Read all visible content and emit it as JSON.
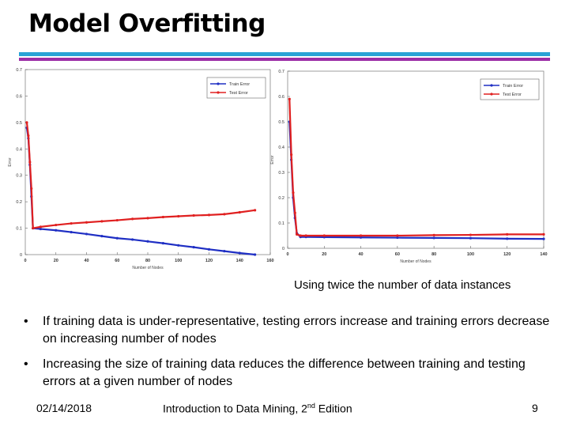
{
  "slide": {
    "title": "Model Overfitting",
    "caption": "Using twice the number of data instances",
    "bullets": [
      "If training data is under-representative, testing errors increase and training errors decrease on increasing number of nodes",
      "Increasing the size of training data reduces the difference between training and testing errors at a given number of nodes"
    ],
    "bullet_glyph": "•",
    "footer": {
      "date": "02/14/2018",
      "title_prefix": "Introduction to Data Mining, 2",
      "title_sup": "nd",
      "title_suffix": " Edition",
      "page": "9"
    },
    "colors": {
      "rule_top": "#29a3d6",
      "rule_bottom": "#9c2ea6",
      "train": "#1f2fc4",
      "test": "#e02020"
    }
  },
  "chart_data": [
    {
      "type": "line",
      "title": "",
      "xlabel": "Number of Nodes",
      "ylabel": "Error",
      "xlim": [
        0,
        160
      ],
      "ylim": [
        0,
        0.7
      ],
      "xticks": [
        0,
        20,
        40,
        60,
        80,
        100,
        120,
        140,
        160
      ],
      "yticks": [
        0,
        0.1,
        0.2,
        0.3,
        0.4,
        0.5,
        0.6,
        0.7
      ],
      "legend": "top-right",
      "series": [
        {
          "name": "Train Error",
          "color": "#1f2fc4",
          "x": [
            1,
            2,
            3,
            4,
            5,
            10,
            20,
            30,
            40,
            50,
            60,
            70,
            80,
            90,
            100,
            110,
            120,
            130,
            140,
            150
          ],
          "y": [
            0.48,
            0.44,
            0.34,
            0.22,
            0.1,
            0.097,
            0.092,
            0.085,
            0.078,
            0.07,
            0.062,
            0.057,
            0.05,
            0.043,
            0.035,
            0.028,
            0.02,
            0.013,
            0.006,
            0.0
          ]
        },
        {
          "name": "Test Error",
          "color": "#e02020",
          "x": [
            1,
            2,
            3,
            4,
            5,
            10,
            20,
            30,
            40,
            50,
            60,
            70,
            80,
            90,
            100,
            110,
            120,
            130,
            140,
            150
          ],
          "y": [
            0.5,
            0.45,
            0.35,
            0.25,
            0.1,
            0.105,
            0.112,
            0.118,
            0.122,
            0.126,
            0.13,
            0.135,
            0.138,
            0.142,
            0.145,
            0.148,
            0.15,
            0.153,
            0.16,
            0.168
          ]
        }
      ]
    },
    {
      "type": "line",
      "title": "",
      "xlabel": "Number of Nodes",
      "ylabel": "Error",
      "xlim": [
        0,
        140
      ],
      "ylim": [
        0,
        0.7
      ],
      "xticks": [
        0,
        20,
        40,
        60,
        80,
        100,
        120,
        140
      ],
      "yticks": [
        0,
        0.1,
        0.2,
        0.3,
        0.4,
        0.5,
        0.6,
        0.7
      ],
      "legend": "top-right",
      "series": [
        {
          "name": "Train Error",
          "color": "#1f2fc4",
          "x": [
            1,
            2,
            3,
            4,
            5,
            7,
            10,
            20,
            40,
            60,
            80,
            100,
            120,
            140
          ],
          "y": [
            0.5,
            0.35,
            0.2,
            0.12,
            0.06,
            0.045,
            0.045,
            0.044,
            0.043,
            0.042,
            0.041,
            0.04,
            0.038,
            0.037
          ]
        },
        {
          "name": "Test Error",
          "color": "#e02020",
          "x": [
            1,
            2,
            3,
            4,
            5,
            7,
            10,
            20,
            40,
            60,
            80,
            100,
            120,
            140
          ],
          "y": [
            0.59,
            0.37,
            0.22,
            0.14,
            0.055,
            0.05,
            0.05,
            0.05,
            0.05,
            0.05,
            0.052,
            0.053,
            0.055,
            0.055
          ]
        }
      ]
    }
  ]
}
